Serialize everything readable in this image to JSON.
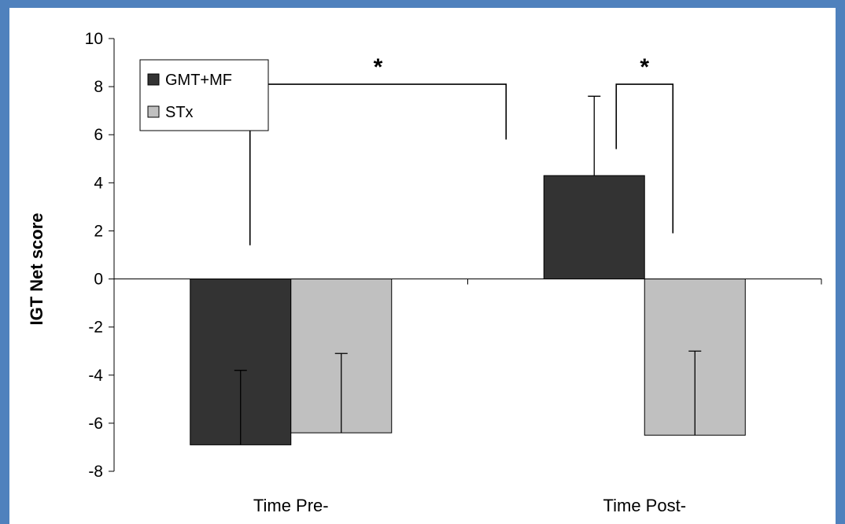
{
  "chart_data": {
    "type": "bar",
    "title": "",
    "xlabel": "",
    "ylabel": "IGT Net score",
    "ylim": [
      -8,
      10
    ],
    "yticks": [
      -8,
      -6,
      -4,
      -2,
      0,
      2,
      4,
      6,
      8,
      10
    ],
    "categories": [
      "Time Pre-",
      "Time Post-"
    ],
    "series": [
      {
        "name": "GMT+MF",
        "color": "#333333",
        "values": [
          -6.9,
          4.3
        ],
        "error_up": [
          3.1,
          3.3
        ]
      },
      {
        "name": "STx",
        "color": "#c0c0c0",
        "values": [
          -6.4,
          -6.5
        ],
        "error_up": [
          3.3,
          3.5
        ]
      }
    ],
    "legend_position": "top-left",
    "grid": false,
    "annotations": [
      {
        "label": "*",
        "type": "bracket",
        "between": "GMT+MF Time Pre- vs GMT+MF Time Post-"
      },
      {
        "label": "*",
        "type": "bracket",
        "between": "GMT+MF Time Post- vs STx Time Post-"
      }
    ]
  },
  "colors": {
    "background": "#4f81bd",
    "plot_area": "#ffffff"
  }
}
